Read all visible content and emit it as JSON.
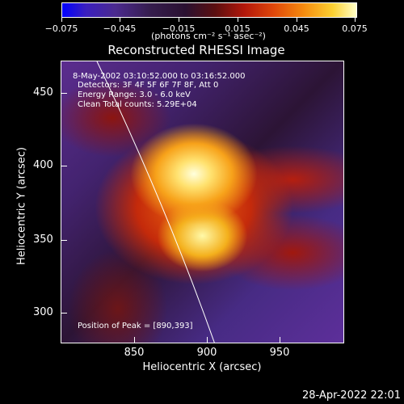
{
  "colorbar": {
    "labels": [
      "−0.075",
      "−0.045",
      "−0.015",
      "0.015",
      "0.045",
      "0.075"
    ],
    "units": "(photons cm⁻² s⁻¹ asec⁻²)",
    "range": [
      -0.075,
      0.075
    ]
  },
  "title": "Reconstructed RHESSI Image",
  "info": {
    "line1": "8-May-2002 03:10:52.000 to 03:16:52.000",
    "line2": "Detectors: 3F 4F 5F 6F 7F 8F, Att 0",
    "line3": "Energy Range: 3.0 - 6.0 keV",
    "line4": "Clean    Total counts: 5.29E+04",
    "peak": "Position of Peak = [890,393]"
  },
  "axes": {
    "x_title": "Heliocentric X (arcsec)",
    "y_title": "Heliocentric Y (arcsec)",
    "x_ticks": [
      "850",
      "900",
      "950"
    ],
    "y_ticks": [
      "450",
      "400",
      "350",
      "300"
    ]
  },
  "timestamp": "28-Apr-2022 22:01"
}
